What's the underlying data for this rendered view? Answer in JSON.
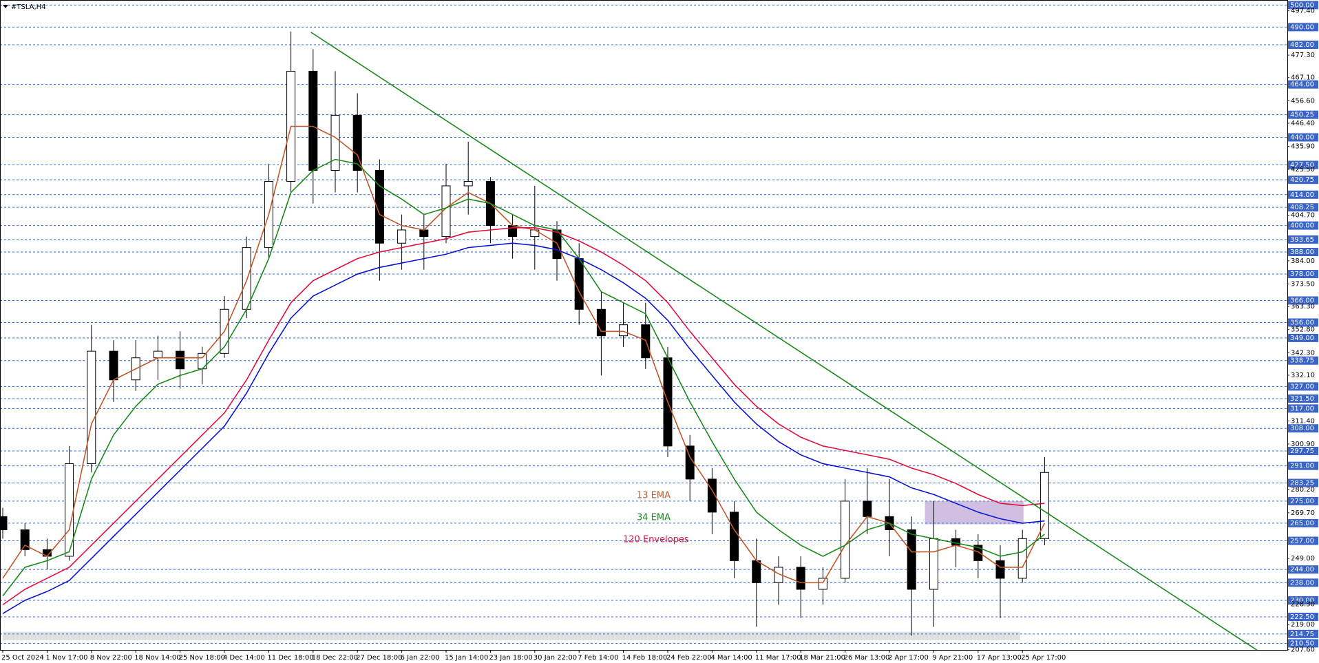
{
  "chart_data": {
    "type": "candlestick",
    "title": "#TSLA,H4",
    "categories": [
      "25 Oct 2024",
      null,
      "1 Nov 17:00",
      null,
      "8 Nov 22:00",
      null,
      "18 Nov 14:00",
      null,
      "25 Nov 18:00",
      null,
      "4 Dec 14:00",
      null,
      "11 Dec 18:00",
      null,
      "18 Dec 22:00",
      null,
      "27 Dec 18:00",
      null,
      "6 Jan 22:00",
      null,
      "15 Jan 14:00",
      null,
      "23 Jan 18:00",
      null,
      "30 Jan 22:00",
      null,
      "7 Feb 14:00",
      null,
      "14 Feb 18:00",
      null,
      "24 Feb 22:00",
      null,
      "4 Mar 14:00",
      null,
      "11 Mar 17:00",
      null,
      "18 Mar 21:00",
      null,
      "26 Mar 13:00",
      null,
      "2 Apr 17:00",
      null,
      "9 Apr 21:00",
      null,
      "17 Apr 13:00",
      null,
      "25 Apr 17:00",
      null
    ],
    "candles": {
      "open": [
        268,
        262,
        253,
        250,
        292,
        343,
        330,
        340,
        343,
        335,
        342,
        362,
        390,
        420,
        470,
        425,
        450,
        425,
        392,
        398,
        395,
        418,
        420,
        400,
        395,
        398,
        385,
        362,
        350,
        355,
        340,
        300,
        285,
        270,
        248,
        238,
        245,
        235,
        240,
        275,
        268,
        262,
        235,
        258,
        255,
        248,
        240,
        258
      ],
      "high": [
        272,
        265,
        258,
        300,
        355,
        348,
        348,
        350,
        352,
        345,
        368,
        395,
        428,
        488,
        480,
        470,
        460,
        430,
        405,
        405,
        428,
        438,
        422,
        405,
        418,
        402,
        392,
        370,
        365,
        365,
        345,
        305,
        290,
        275,
        258,
        250,
        250,
        245,
        285,
        290,
        285,
        268,
        275,
        262,
        260,
        255,
        262,
        295
      ],
      "low": [
        258,
        250,
        244,
        248,
        288,
        320,
        325,
        330,
        326,
        328,
        340,
        358,
        385,
        415,
        410,
        415,
        415,
        375,
        380,
        380,
        392,
        405,
        392,
        385,
        380,
        375,
        355,
        332,
        345,
        335,
        295,
        275,
        260,
        240,
        218,
        228,
        222,
        228,
        238,
        260,
        250,
        214,
        218,
        245,
        240,
        222,
        238,
        255
      ],
      "close": [
        262,
        253,
        250,
        292,
        343,
        330,
        340,
        343,
        335,
        342,
        362,
        390,
        420,
        470,
        425,
        450,
        425,
        392,
        398,
        395,
        418,
        420,
        400,
        395,
        398,
        385,
        362,
        350,
        355,
        340,
        300,
        285,
        270,
        248,
        238,
        245,
        235,
        240,
        275,
        268,
        262,
        235,
        258,
        255,
        248,
        240,
        258,
        288
      ]
    },
    "series": [
      {
        "name": "13 EMA",
        "color": "#c0582a",
        "values": [
          240,
          255,
          250,
          262,
          310,
          330,
          335,
          340,
          340,
          340,
          352,
          375,
          405,
          445,
          445,
          440,
          432,
          405,
          400,
          398,
          408,
          415,
          410,
          400,
          398,
          392,
          370,
          352,
          352,
          348,
          320,
          295,
          280,
          262,
          248,
          242,
          238,
          238,
          255,
          268,
          265,
          252,
          252,
          255,
          252,
          245,
          245,
          265
        ]
      },
      {
        "name": "34 EMA",
        "color": "#1a8a1a",
        "values": [
          232,
          245,
          248,
          252,
          285,
          305,
          318,
          328,
          332,
          335,
          345,
          362,
          385,
          415,
          425,
          430,
          428,
          418,
          412,
          405,
          408,
          412,
          410,
          405,
          400,
          398,
          385,
          370,
          365,
          360,
          340,
          320,
          302,
          285,
          270,
          262,
          255,
          250,
          255,
          262,
          265,
          260,
          258,
          256,
          254,
          250,
          252,
          260
        ]
      },
      {
        "name": "120 Envelopes",
        "color": "#e0103c",
        "values": [
          228,
          235,
          240,
          245,
          255,
          265,
          275,
          285,
          295,
          305,
          315,
          330,
          348,
          365,
          375,
          380,
          385,
          388,
          390,
          392,
          394,
          397,
          398,
          399,
          399,
          397,
          393,
          388,
          382,
          375,
          365,
          352,
          340,
          328,
          318,
          310,
          304,
          300,
          298,
          296,
          294,
          290,
          287,
          283,
          278,
          274,
          273,
          274
        ],
        "lower_color": "#0a14d0",
        "lower": [
          224,
          230,
          234,
          239,
          249,
          259,
          269,
          279,
          289,
          299,
          309,
          324,
          342,
          358,
          368,
          373,
          378,
          381,
          383,
          385,
          387,
          390,
          391,
          392,
          391,
          389,
          385,
          380,
          374,
          367,
          357,
          344,
          332,
          320,
          310,
          302,
          296,
          292,
          290,
          288,
          286,
          281,
          278,
          274,
          270,
          267,
          265,
          266
        ]
      }
    ],
    "trendline": {
      "color": "#1a8a1a",
      "x": [
        13.9,
        56.6
      ],
      "y": [
        487.7,
        207.3
      ]
    },
    "zones": [
      {
        "color": "#c8b4dc",
        "x": [
          41.6,
          46.05
        ],
        "y": [
          264.5,
          275
        ]
      },
      {
        "color": "#dcdcdc",
        "x": [
          0,
          45.9
        ],
        "y": [
          211.9,
          215.7
        ]
      }
    ],
    "ylim": [
      207.2,
      502.3
    ],
    "yticks": [
      {
        "value": 497.4,
        "label": "497.40"
      },
      {
        "value": 477.3,
        "label": "477.30"
      },
      {
        "value": 467.1,
        "label": "467.10"
      },
      {
        "value": 456.6,
        "label": "456.60"
      },
      {
        "value": 446.4,
        "label": "446.40"
      },
      {
        "value": 435.9,
        "label": "435.90"
      },
      {
        "value": 425.5,
        "label": "425.50"
      },
      {
        "value": 404.7,
        "label": "404.70"
      },
      {
        "value": 384,
        "label": "384.00"
      },
      {
        "value": 373.5,
        "label": "373.50"
      },
      {
        "value": 363.3,
        "label": "363.30"
      },
      {
        "value": 352.8,
        "label": "352.80"
      },
      {
        "value": 342.3,
        "label": "342.30"
      },
      {
        "value": 332.1,
        "label": "332.10"
      },
      {
        "value": 311.4,
        "label": "311.40"
      },
      {
        "value": 300.9,
        "label": "300.90"
      },
      {
        "value": 280.2,
        "label": "280.20"
      },
      {
        "value": 269.7,
        "label": "269.70"
      },
      {
        "value": 249,
        "label": "249.00"
      },
      {
        "value": 228.3,
        "label": "228.30"
      },
      {
        "value": 219,
        "label": "219.00"
      },
      {
        "value": 207.6,
        "label": "207.60"
      }
    ],
    "levels": [
      {
        "value": 500,
        "label": "500.00"
      },
      {
        "value": 490,
        "label": "490.00"
      },
      {
        "value": 482,
        "label": "482.00"
      },
      {
        "value": 464,
        "label": "464.00"
      },
      {
        "value": 450.25,
        "label": "450.25"
      },
      {
        "value": 440,
        "label": "440.00"
      },
      {
        "value": 427.5,
        "label": "427.50"
      },
      {
        "value": 420.75,
        "label": "420.75"
      },
      {
        "value": 414,
        "label": "414.00"
      },
      {
        "value": 408.25,
        "label": "408.25"
      },
      {
        "value": 400,
        "label": "400.00"
      },
      {
        "value": 393.65,
        "label": "393.65"
      },
      {
        "value": 388,
        "label": "388.00"
      },
      {
        "value": 378,
        "label": "378.00"
      },
      {
        "value": 366,
        "label": "366.00"
      },
      {
        "value": 356,
        "label": "356.00"
      },
      {
        "value": 349,
        "label": "349.00"
      },
      {
        "value": 338.75,
        "label": "338.75"
      },
      {
        "value": 327,
        "label": "327.00"
      },
      {
        "value": 321.5,
        "label": "321.50"
      },
      {
        "value": 317,
        "label": "317.00"
      },
      {
        "value": 308,
        "label": "308.00"
      },
      {
        "value": 297.75,
        "label": "297.75"
      },
      {
        "value": 291,
        "label": "291.00"
      },
      {
        "value": 283.25,
        "label": "283.25"
      },
      {
        "value": 275,
        "label": "275.00"
      },
      {
        "value": 265,
        "label": "265.00"
      },
      {
        "value": 257,
        "label": "257.00"
      },
      {
        "value": 244,
        "label": "244.00"
      },
      {
        "value": 238,
        "label": "238.00"
      },
      {
        "value": 230,
        "label": "230.00"
      },
      {
        "value": 222.5,
        "label": "222.50"
      },
      {
        "value": 214.75,
        "label": "214.75"
      },
      {
        "value": 210.5,
        "label": "210.50"
      }
    ],
    "level_color": "#3a64c8"
  }
}
